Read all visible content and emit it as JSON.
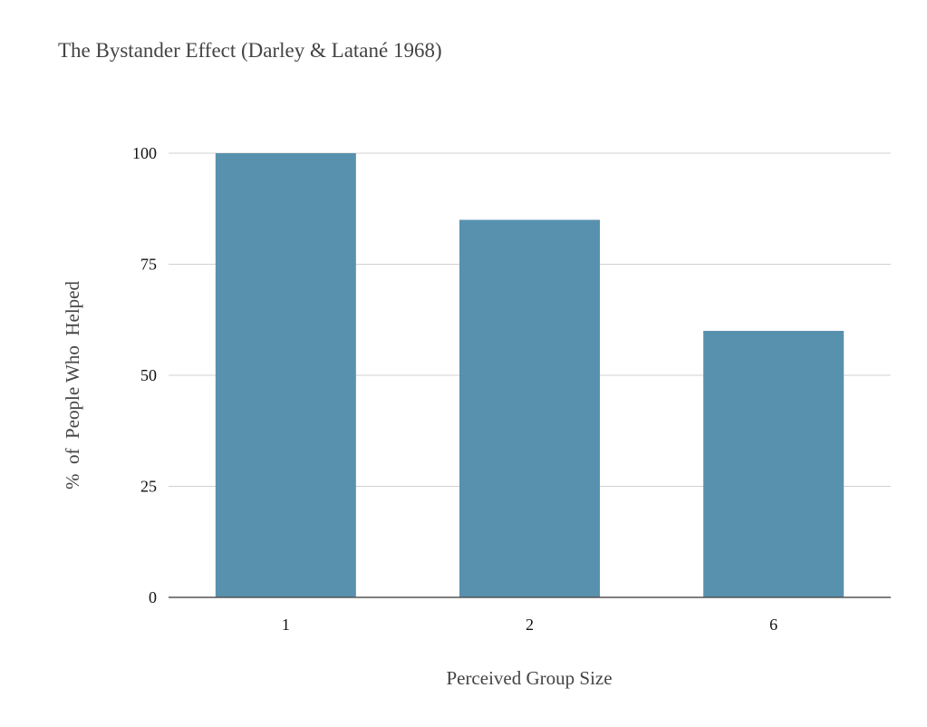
{
  "chart_data": {
    "type": "bar",
    "title": "The Bystander Effect (Darley & Latané 1968)",
    "xlabel": "Perceived Group Size",
    "ylabel": "%  of  People Who  Helped",
    "categories": [
      "1",
      "2",
      "6"
    ],
    "values": [
      100,
      85,
      60
    ],
    "ylim": [
      0,
      100
    ],
    "yticks": [
      0,
      25,
      50,
      75,
      100
    ],
    "grid": true,
    "legend": "none",
    "bar_color": "#5891ae"
  }
}
